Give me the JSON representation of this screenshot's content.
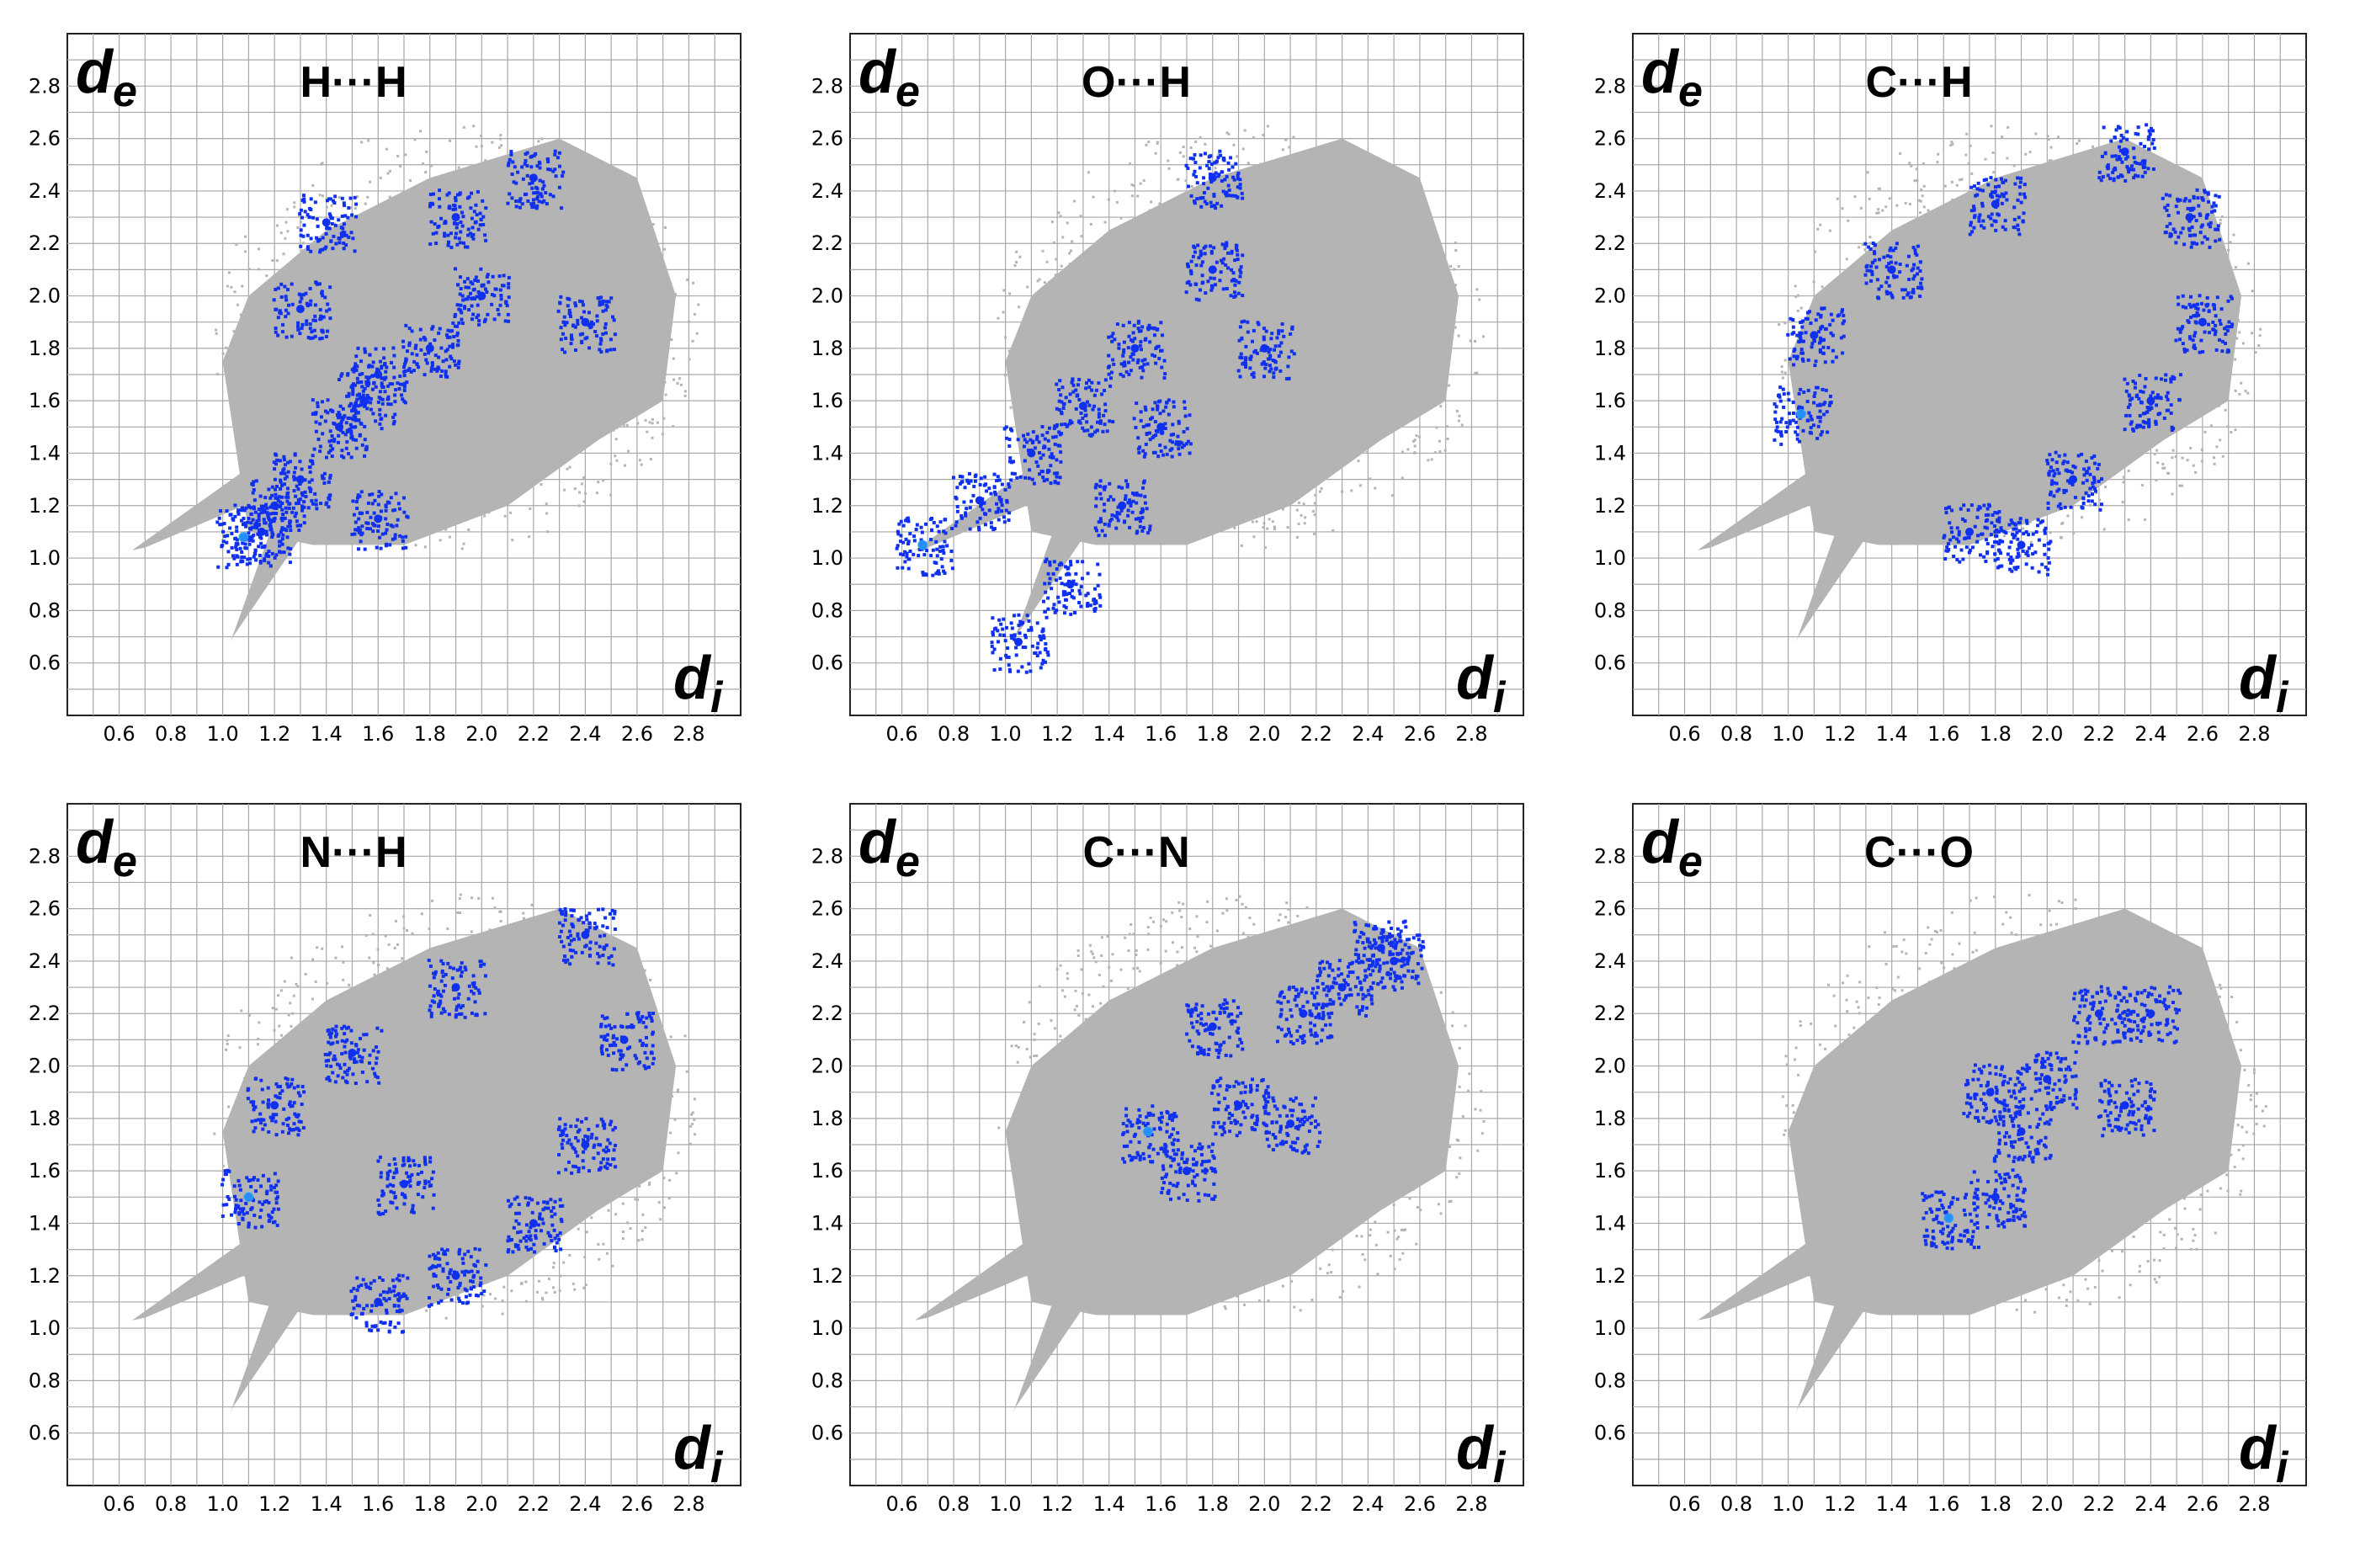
{
  "chart_data": [
    {
      "type": "scatter",
      "title": "H···H",
      "xlabel": "di",
      "ylabel": "de",
      "xlim": [
        0.4,
        3.0
      ],
      "ylim": [
        0.4,
        3.0
      ],
      "x_ticks": [
        "0.6",
        "0.8",
        "1.0",
        "1.2",
        "1.4",
        "1.6",
        "1.8",
        "2.0",
        "2.2",
        "2.4",
        "2.6",
        "2.8"
      ],
      "y_ticks": [
        "0.6",
        "0.8",
        "1.0",
        "1.2",
        "1.4",
        "1.6",
        "1.8",
        "2.0",
        "2.2",
        "2.4",
        "2.6",
        "2.8"
      ],
      "grid": true,
      "series": [
        {
          "values": [
            [
              1.08,
              1.08
            ],
            [
              1.15,
              1.1
            ],
            [
              1.2,
              1.2
            ],
            [
              1.3,
              1.3
            ],
            [
              1.45,
              1.5
            ],
            [
              1.55,
              1.6
            ],
            [
              1.6,
              1.7
            ],
            [
              1.8,
              1.8
            ],
            [
              2.0,
              2.0
            ],
            [
              1.6,
              1.15
            ],
            [
              1.3,
              1.95
            ],
            [
              1.9,
              2.3
            ],
            [
              2.2,
              2.45
            ],
            [
              2.4,
              1.9
            ],
            [
              1.4,
              2.28
            ]
          ]
        }
      ]
    },
    {
      "type": "scatter",
      "title": "O···H",
      "xlabel": "di",
      "ylabel": "de",
      "xlim": [
        0.4,
        3.0
      ],
      "ylim": [
        0.4,
        3.0
      ],
      "x_ticks": [
        "0.6",
        "0.8",
        "1.0",
        "1.2",
        "1.4",
        "1.6",
        "1.8",
        "2.0",
        "2.2",
        "2.4",
        "2.6",
        "2.8"
      ],
      "y_ticks": [
        "0.6",
        "0.8",
        "1.0",
        "1.2",
        "1.4",
        "1.6",
        "1.8",
        "2.0",
        "2.2",
        "2.4",
        "2.6",
        "2.8"
      ],
      "grid": true,
      "series": [
        {
          "values": [
            [
              0.68,
              1.05
            ],
            [
              0.9,
              1.22
            ],
            [
              1.1,
              1.4
            ],
            [
              1.3,
              1.58
            ],
            [
              1.5,
              1.8
            ],
            [
              1.05,
              0.68
            ],
            [
              1.25,
              0.9
            ],
            [
              1.45,
              1.2
            ],
            [
              1.6,
              1.5
            ],
            [
              1.8,
              2.1
            ],
            [
              1.8,
              2.45
            ],
            [
              2.0,
              1.8
            ]
          ]
        }
      ]
    },
    {
      "type": "scatter",
      "title": "C···H",
      "xlabel": "di",
      "ylabel": "de",
      "xlim": [
        0.4,
        3.0
      ],
      "ylim": [
        0.4,
        3.0
      ],
      "x_ticks": [
        "0.6",
        "0.8",
        "1.0",
        "1.2",
        "1.4",
        "1.6",
        "1.8",
        "2.0",
        "2.2",
        "2.4",
        "2.6",
        "2.8"
      ],
      "y_ticks": [
        "0.6",
        "0.8",
        "1.0",
        "1.2",
        "1.4",
        "1.6",
        "1.8",
        "2.0",
        "2.2",
        "2.4",
        "2.6",
        "2.8"
      ],
      "grid": true,
      "series": [
        {
          "values": [
            [
              1.05,
              1.55
            ],
            [
              1.1,
              1.85
            ],
            [
              1.4,
              2.1
            ],
            [
              1.8,
              2.35
            ],
            [
              2.3,
              2.55
            ],
            [
              2.55,
              2.3
            ],
            [
              2.6,
              1.9
            ],
            [
              2.4,
              1.6
            ],
            [
              2.1,
              1.3
            ],
            [
              1.7,
              1.1
            ],
            [
              1.9,
              1.05
            ]
          ]
        }
      ]
    },
    {
      "type": "scatter",
      "title": "N···H",
      "xlabel": "di",
      "ylabel": "de",
      "xlim": [
        0.4,
        3.0
      ],
      "ylim": [
        0.4,
        3.0
      ],
      "x_ticks": [
        "0.6",
        "0.8",
        "1.0",
        "1.2",
        "1.4",
        "1.6",
        "1.8",
        "2.0",
        "2.2",
        "2.4",
        "2.6",
        "2.8"
      ],
      "y_ticks": [
        "0.6",
        "0.8",
        "1.0",
        "1.2",
        "1.4",
        "1.6",
        "1.8",
        "2.0",
        "2.2",
        "2.4",
        "2.6",
        "2.8"
      ],
      "grid": true,
      "series": [
        {
          "values": [
            [
              1.1,
              1.5
            ],
            [
              1.2,
              1.85
            ],
            [
              1.5,
              2.05
            ],
            [
              1.9,
              2.3
            ],
            [
              2.4,
              2.5
            ],
            [
              2.55,
              2.1
            ],
            [
              2.4,
              1.7
            ],
            [
              2.2,
              1.4
            ],
            [
              1.9,
              1.2
            ],
            [
              1.6,
              1.1
            ],
            [
              1.7,
              1.55
            ]
          ]
        }
      ]
    },
    {
      "type": "scatter",
      "title": "C···N",
      "xlabel": "di",
      "ylabel": "de",
      "xlim": [
        0.4,
        3.0
      ],
      "ylim": [
        0.4,
        3.0
      ],
      "x_ticks": [
        "0.6",
        "0.8",
        "1.0",
        "1.2",
        "1.4",
        "1.6",
        "1.8",
        "2.0",
        "2.2",
        "2.4",
        "2.6",
        "2.8"
      ],
      "y_ticks": [
        "0.6",
        "0.8",
        "1.0",
        "1.2",
        "1.4",
        "1.6",
        "1.8",
        "2.0",
        "2.2",
        "2.4",
        "2.6",
        "2.8"
      ],
      "grid": true,
      "series": [
        {
          "values": [
            [
              1.55,
              1.75
            ],
            [
              1.7,
              1.6
            ],
            [
              1.8,
              2.15
            ],
            [
              1.9,
              1.85
            ],
            [
              2.1,
              1.78
            ],
            [
              2.15,
              2.2
            ],
            [
              2.3,
              2.3
            ],
            [
              2.45,
              2.45
            ],
            [
              2.5,
              2.4
            ]
          ]
        }
      ]
    },
    {
      "type": "scatter",
      "title": "C···O",
      "xlabel": "di",
      "ylabel": "de",
      "xlim": [
        0.4,
        3.0
      ],
      "ylim": [
        0.4,
        3.0
      ],
      "x_ticks": [
        "0.6",
        "0.8",
        "1.0",
        "1.2",
        "1.4",
        "1.6",
        "1.8",
        "2.0",
        "2.2",
        "2.4",
        "2.6",
        "2.8"
      ],
      "y_ticks": [
        "0.6",
        "0.8",
        "1.0",
        "1.2",
        "1.4",
        "1.6",
        "1.8",
        "2.0",
        "2.2",
        "2.4",
        "2.6",
        "2.8"
      ],
      "grid": true,
      "series": [
        {
          "values": [
            [
              1.62,
              1.42
            ],
            [
              1.8,
              1.5
            ],
            [
              1.9,
              1.75
            ],
            [
              2.0,
              1.95
            ],
            [
              2.2,
              2.2
            ],
            [
              2.4,
              2.2
            ],
            [
              1.78,
              1.9
            ],
            [
              2.3,
              1.85
            ]
          ]
        }
      ]
    }
  ],
  "colors": {
    "highlight": "#1030f0",
    "highlight_core": "#2aa8ff",
    "background_points": "#b4b4b4",
    "grid": "#a8a8a8"
  }
}
